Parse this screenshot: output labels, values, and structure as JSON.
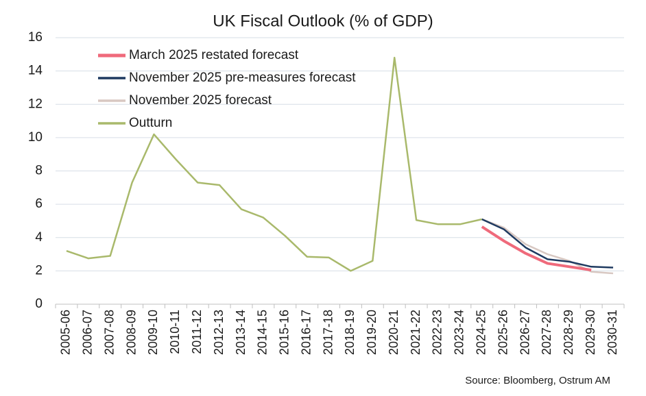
{
  "chart_data": {
    "type": "line",
    "title": "UK Fiscal Outlook (% of GDP)",
    "source": "Source: Bloomberg,  Ostrum AM",
    "categories": [
      "2005-06",
      "2006-07",
      "2007-08",
      "2008-09",
      "2009-10",
      "2010-11",
      "2011-12",
      "2012-13",
      "2013-14",
      "2014-15",
      "2015-16",
      "2016-17",
      "2017-18",
      "2018-19",
      "2019-20",
      "2020-21",
      "2021-22",
      "2022-23",
      "2023-24",
      "2024-25",
      "2025-26",
      "2026-27",
      "2027-28",
      "2028-29",
      "2029-30",
      "2030-31"
    ],
    "series": [
      {
        "name": "March 2025 restated forecast",
        "color": "#ef6a7b",
        "width": 4,
        "values": [
          null,
          null,
          null,
          null,
          null,
          null,
          null,
          null,
          null,
          null,
          null,
          null,
          null,
          null,
          null,
          null,
          null,
          null,
          null,
          4.65,
          3.8,
          3.05,
          2.45,
          2.25,
          2.05,
          null
        ]
      },
      {
        "name": "November 2025 pre-measures forecast",
        "color": "#1f3a60",
        "width": 2.5,
        "values": [
          null,
          null,
          null,
          null,
          null,
          null,
          null,
          null,
          null,
          null,
          null,
          null,
          null,
          null,
          null,
          null,
          null,
          null,
          null,
          5.1,
          4.5,
          3.4,
          2.7,
          2.55,
          2.25,
          2.2
        ]
      },
      {
        "name": "November 2025 forecast",
        "color": "#d8c8c2",
        "width": 2.5,
        "values": [
          null,
          null,
          null,
          null,
          null,
          null,
          null,
          null,
          null,
          null,
          null,
          null,
          null,
          null,
          null,
          null,
          null,
          null,
          null,
          5.1,
          4.6,
          3.6,
          3.0,
          2.6,
          1.95,
          1.85
        ]
      },
      {
        "name": "Outturn",
        "color": "#a9b96b",
        "width": 2.5,
        "values": [
          3.2,
          2.75,
          2.9,
          7.3,
          10.2,
          8.7,
          7.3,
          7.15,
          5.7,
          5.2,
          4.1,
          2.85,
          2.8,
          2.0,
          2.6,
          14.8,
          5.05,
          4.8,
          4.8,
          5.1,
          null,
          null,
          null,
          null,
          null,
          null
        ]
      }
    ],
    "ylim": [
      0,
      16
    ],
    "yticks": [
      0,
      2,
      4,
      6,
      8,
      10,
      12,
      14,
      16
    ],
    "grid": true
  }
}
